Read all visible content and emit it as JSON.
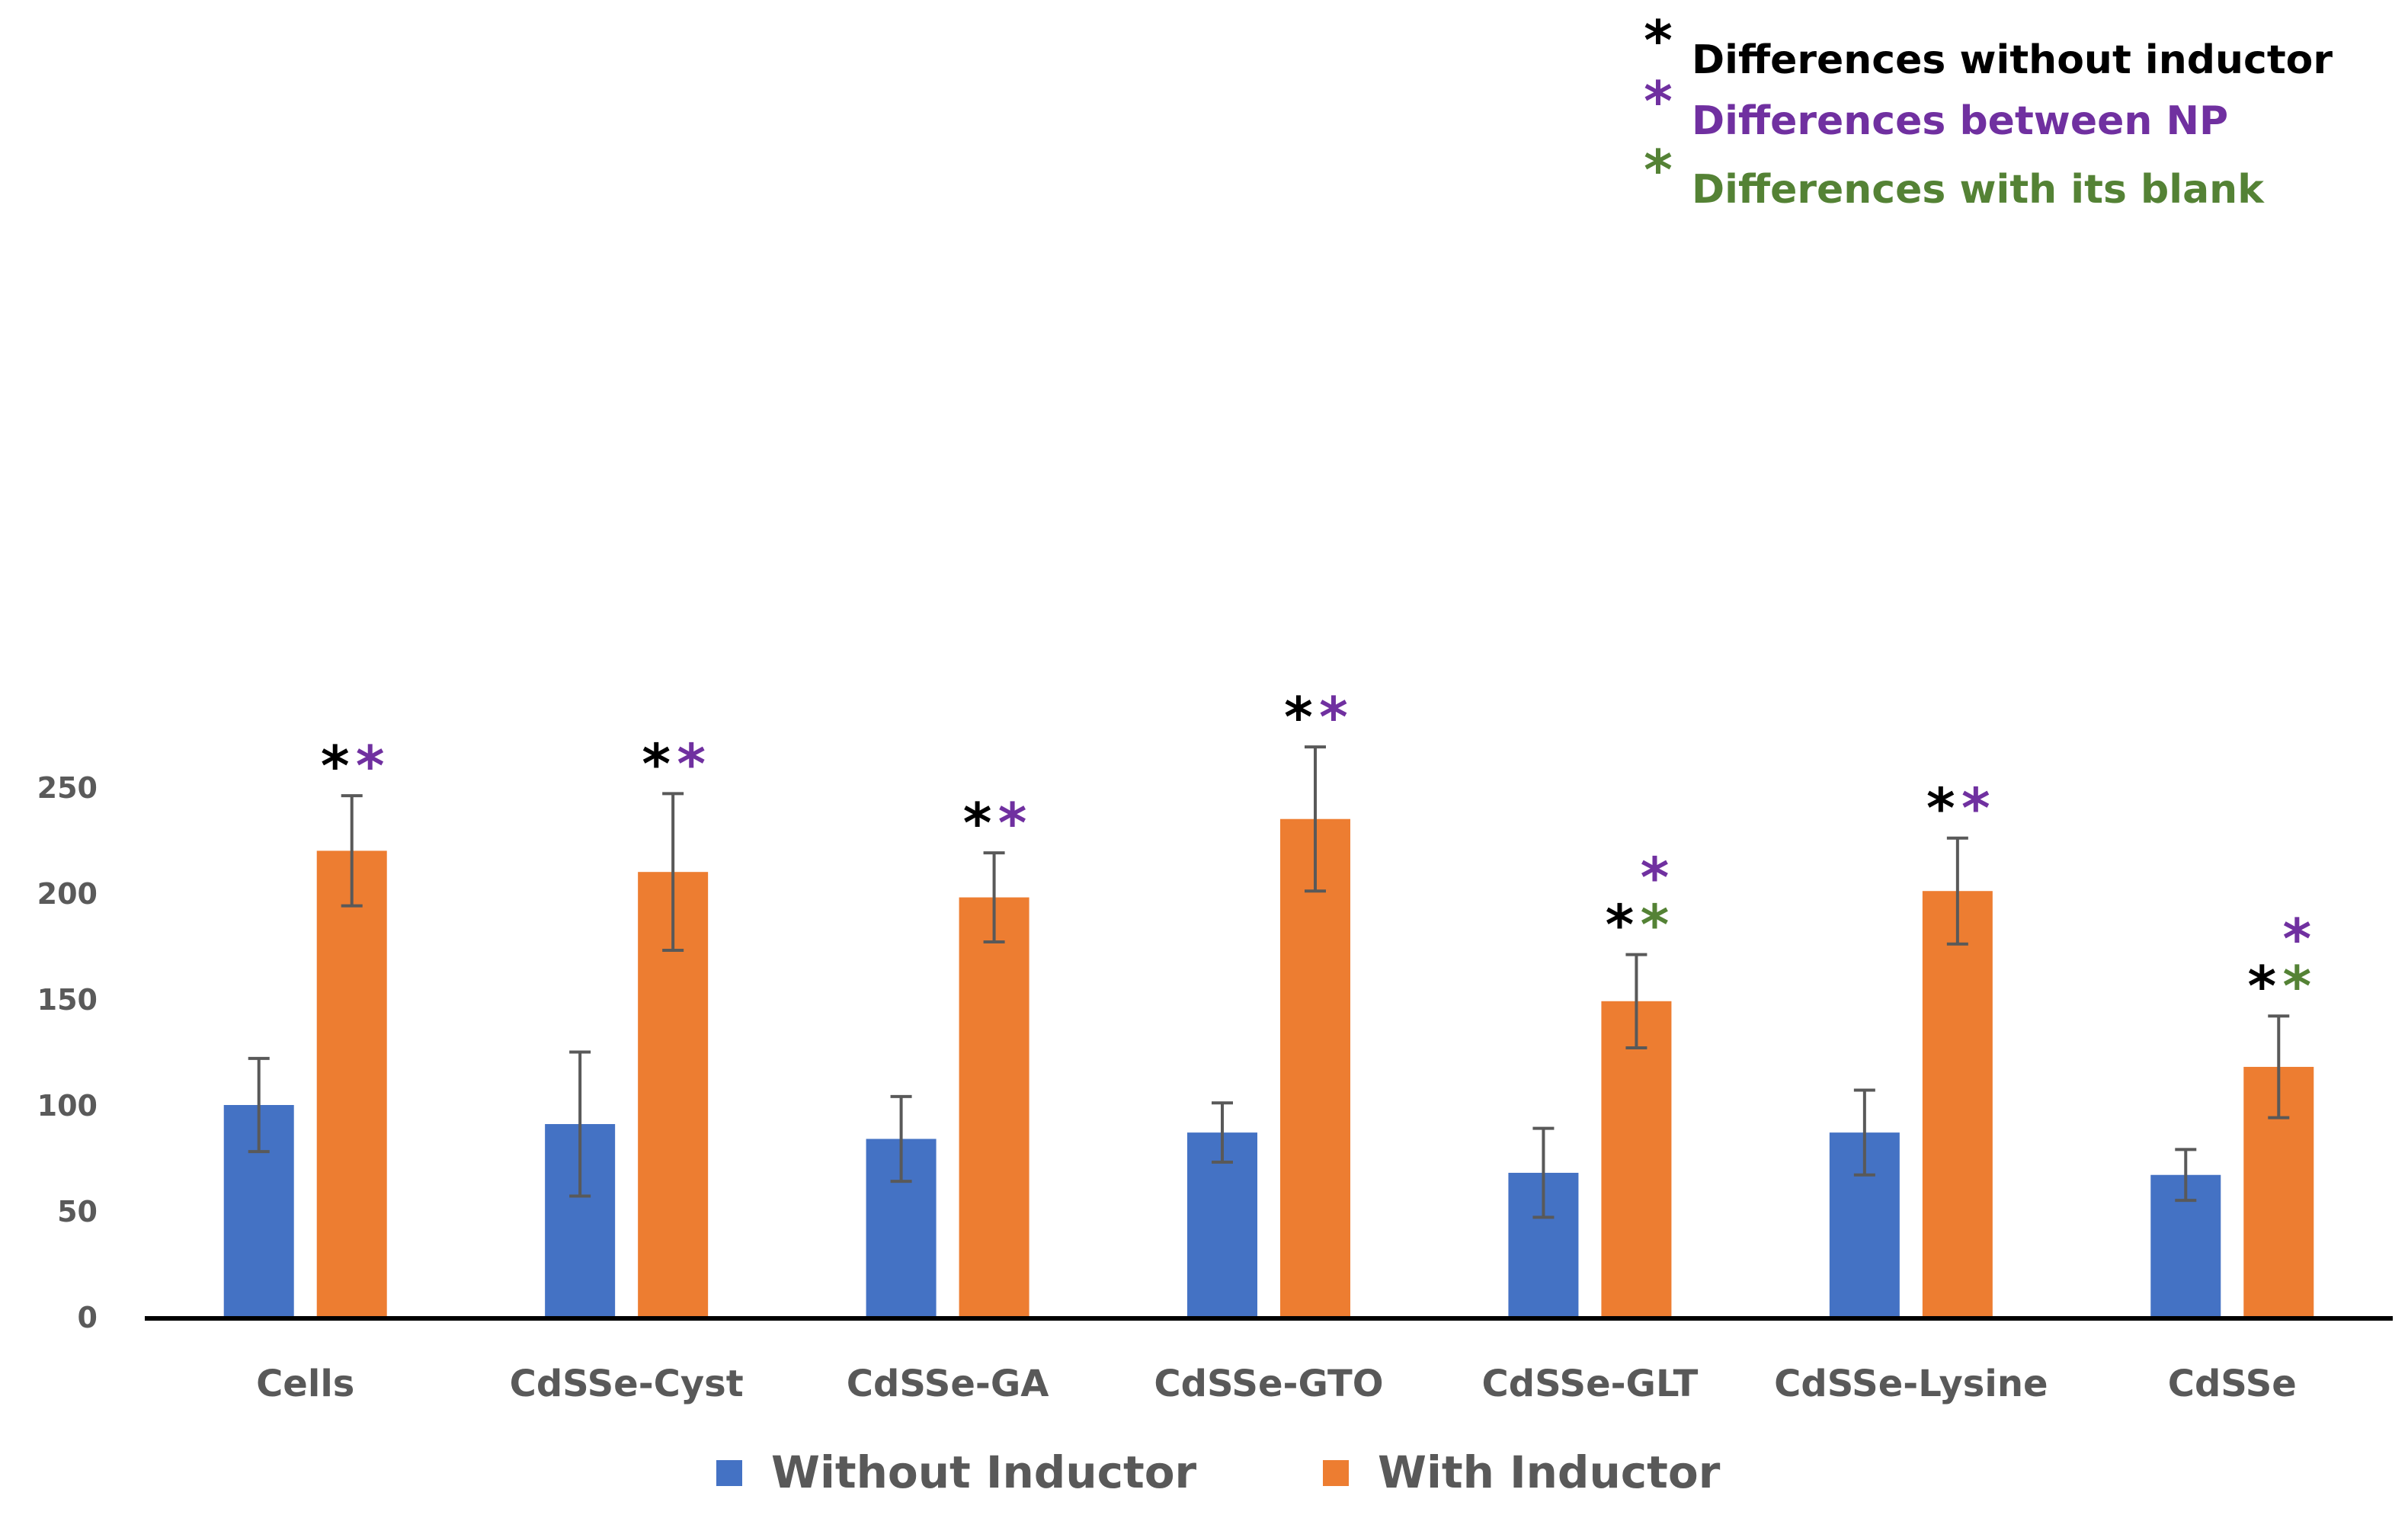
{
  "chart_data": {
    "type": "bar",
    "categories": [
      "Cells",
      "CdSSe-Cyst",
      "CdSSe-GA",
      "CdSSe-GTO",
      "CdSSe-GLT",
      "CdSSe-Lysine",
      "CdSSe"
    ],
    "series": [
      {
        "name": "Without Inductor",
        "color": "#4472c4",
        "values": [
          100,
          91,
          84,
          87,
          68,
          87,
          67
        ],
        "error": [
          22,
          34,
          20,
          14,
          21,
          20,
          12
        ]
      },
      {
        "name": "With Inductor",
        "color": "#ed7d31",
        "values": [
          220,
          210,
          198,
          235,
          149,
          201,
          118
        ],
        "error": [
          26,
          37,
          21,
          34,
          22,
          25,
          24
        ]
      }
    ],
    "yticks": [
      0,
      50,
      100,
      150,
      200,
      250
    ],
    "ylim": [
      0,
      270
    ],
    "title": "",
    "xlabel": "",
    "ylabel": "",
    "significance_legend": [
      {
        "symbol": "*",
        "label": "Differences without inductor",
        "color": "#000000"
      },
      {
        "symbol": "*",
        "label": "Differences between NP",
        "color": "#7030a0"
      },
      {
        "symbol": "*",
        "label": "Differences with its blank",
        "color": "#548235"
      }
    ],
    "significance_marks": [
      {
        "category": "Cells",
        "marks": [
          "black",
          "purple"
        ]
      },
      {
        "category": "CdSSe-Cyst",
        "marks": [
          "black",
          "purple"
        ]
      },
      {
        "category": "CdSSe-GA",
        "marks": [
          "black",
          "purple"
        ]
      },
      {
        "category": "CdSSe-GTO",
        "marks": [
          "black",
          "purple"
        ]
      },
      {
        "category": "CdSSe-GLT",
        "marks": [
          "black",
          "green",
          "purple"
        ]
      },
      {
        "category": "CdSSe-Lysine",
        "marks": [
          "black",
          "purple"
        ]
      },
      {
        "category": "CdSSe",
        "marks": [
          "black",
          "green",
          "purple"
        ]
      }
    ],
    "mark_colors": {
      "black": "#000000",
      "purple": "#7030a0",
      "green": "#548235"
    },
    "legend_position": "bottom"
  }
}
